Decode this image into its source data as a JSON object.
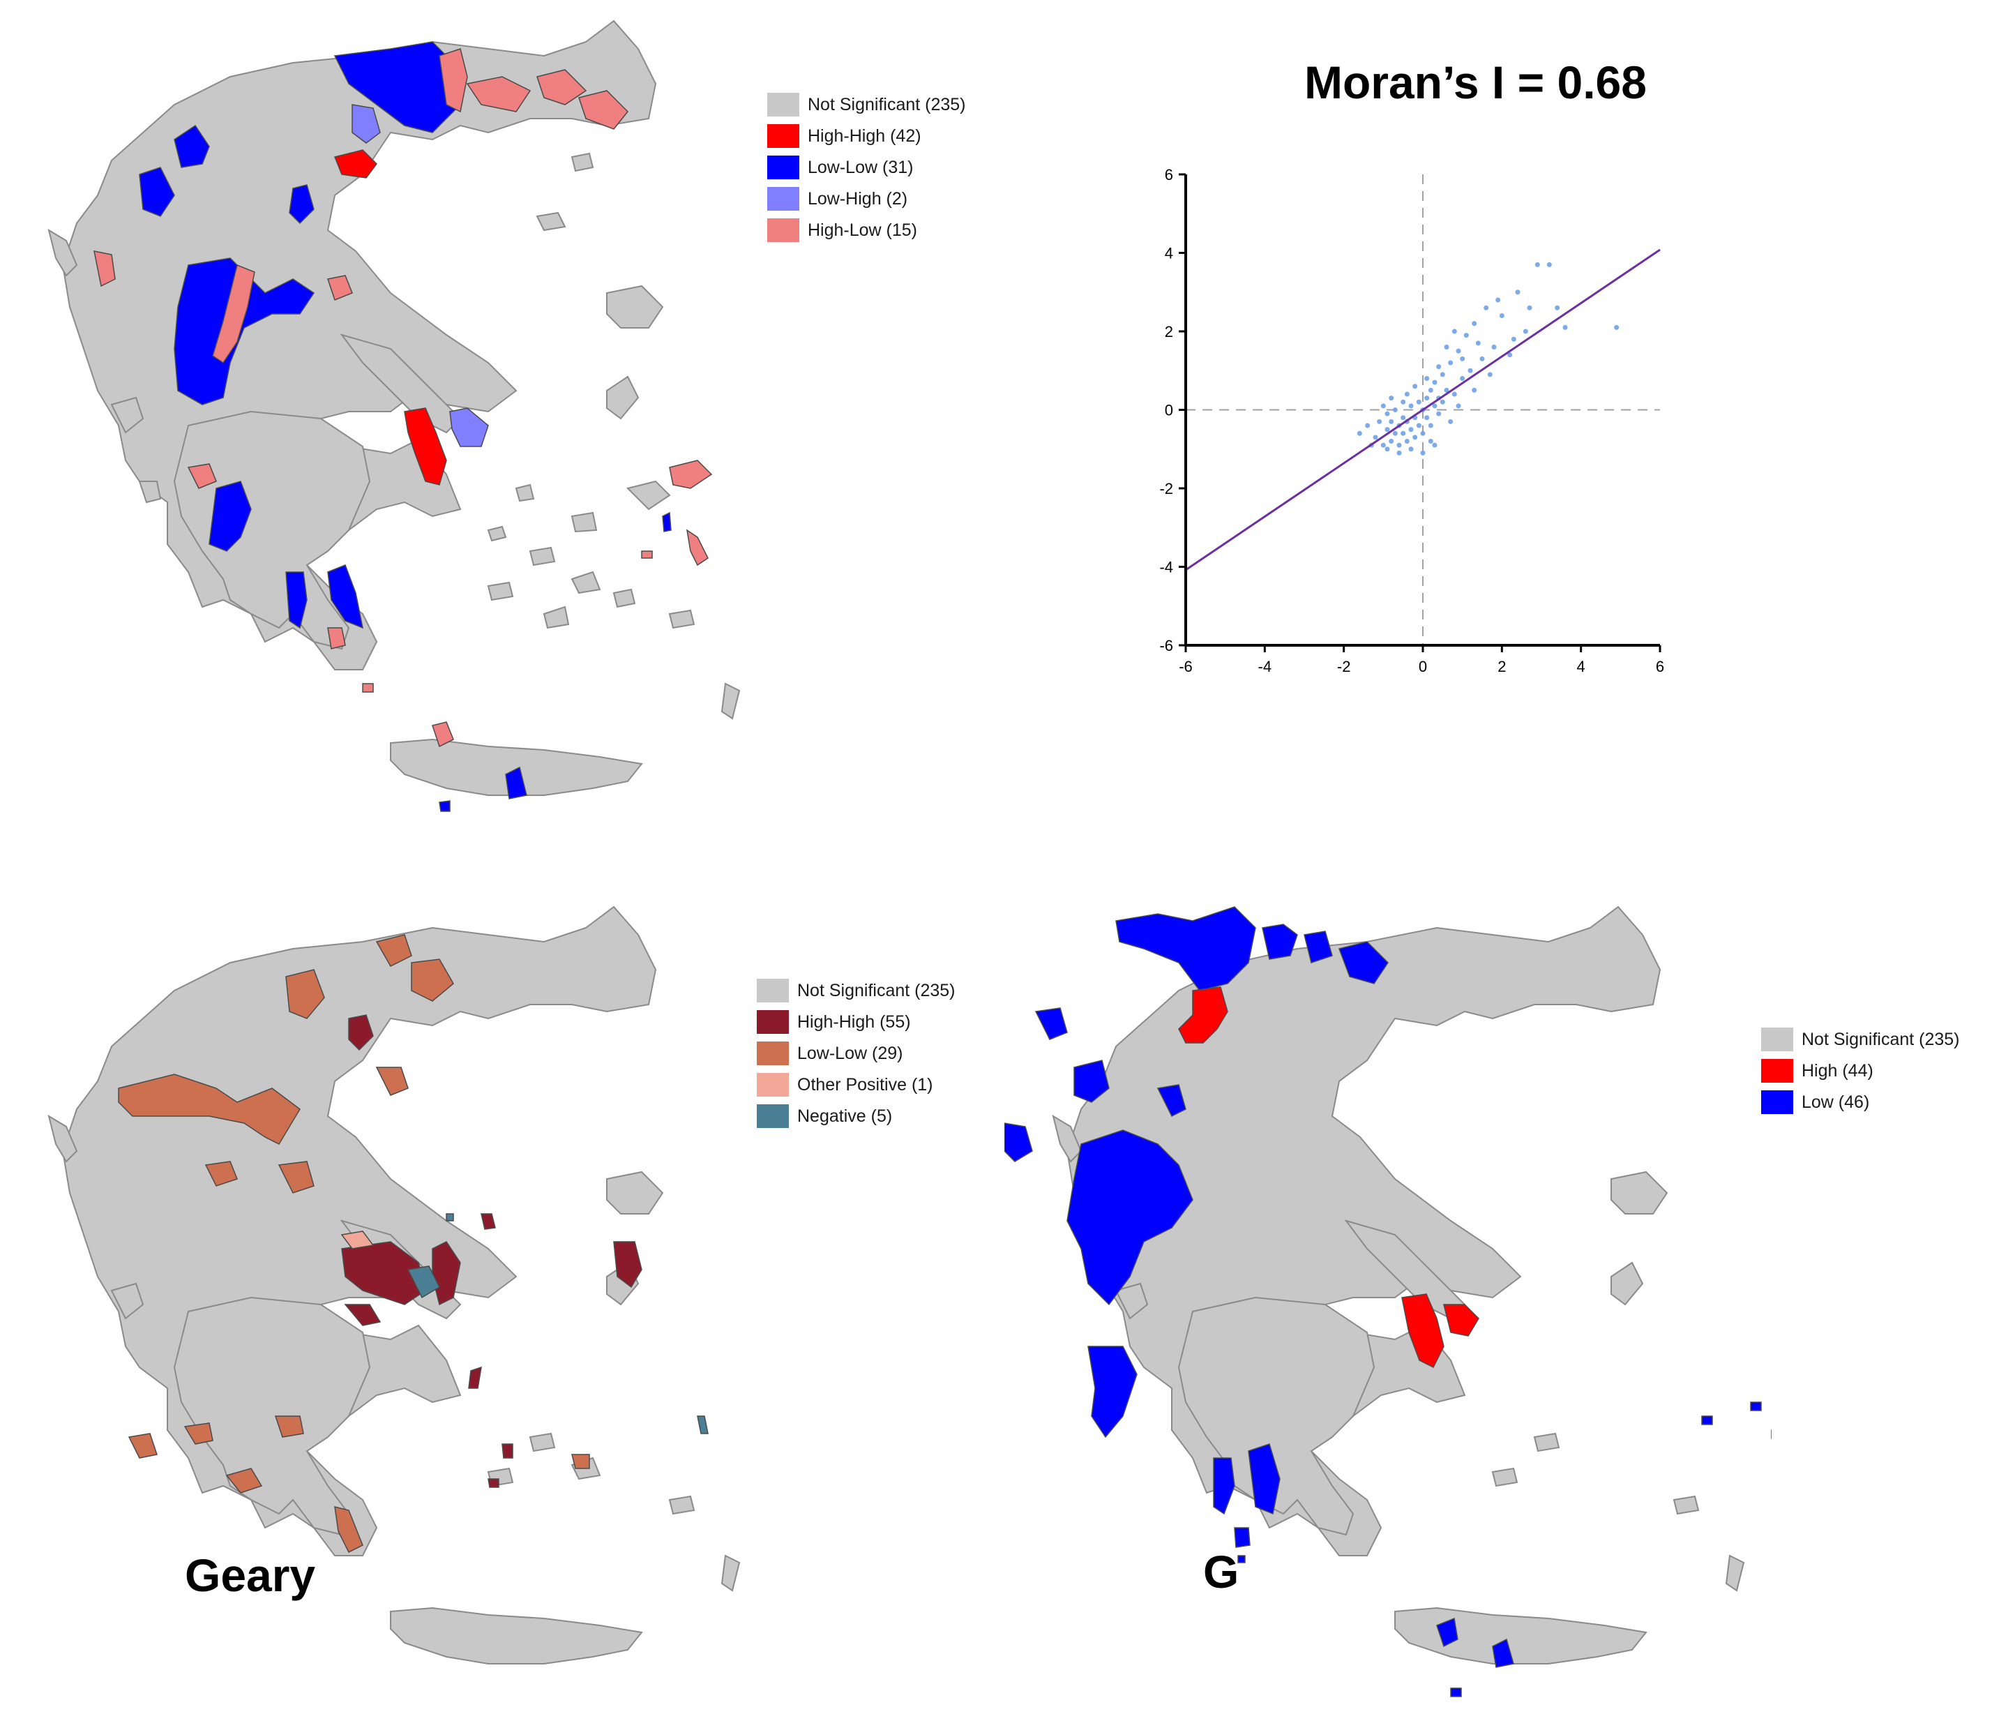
{
  "panels": {
    "lisa": {
      "title": "",
      "legend": [
        {
          "label": "Not Significant (235)",
          "color": "#c8c8c8"
        },
        {
          "label": "High-High (42)",
          "color": "#ff0000"
        },
        {
          "label": "Low-Low (31)",
          "color": "#0000ff"
        },
        {
          "label": "Low-High (2)",
          "color": "#8080ff"
        },
        {
          "label": "High-Low (15)",
          "color": "#f08080"
        }
      ]
    },
    "geary": {
      "title": "Geary",
      "legend": [
        {
          "label": "Not Significant (235)",
          "color": "#c8c8c8"
        },
        {
          "label": "High-High (55)",
          "color": "#8b1a2b"
        },
        {
          "label": "Low-Low (29)",
          "color": "#cc7050"
        },
        {
          "label": "Other Positive (1)",
          "color": "#f2a898"
        },
        {
          "label": "Negative (5)",
          "color": "#4a7f95"
        }
      ]
    },
    "g": {
      "title": "G",
      "legend": [
        {
          "label": "Not Significant (235)",
          "color": "#c8c8c8"
        },
        {
          "label": "High (44)",
          "color": "#ff0000"
        },
        {
          "label": "Low (46)",
          "color": "#0000ff"
        }
      ]
    }
  },
  "colors": {
    "map_base": "#c8c8c8",
    "map_border": "#8a8a8a",
    "scatter_points": "#6fa2e8",
    "fit_line": "#6a2fa0",
    "axis": "#000000",
    "reference_lines": "#a0a0a0"
  },
  "chart_data": {
    "type": "scatter",
    "title": "Moran’s I = 0.68",
    "xlabel": "",
    "ylabel": "",
    "xlim": [
      -6,
      6
    ],
    "ylim": [
      -6,
      6
    ],
    "x_ticks": [
      "-6",
      "-4",
      "-2",
      "0",
      "2",
      "4",
      "6"
    ],
    "y_ticks": [
      "-6",
      "-4",
      "-2",
      "0",
      "2",
      "4",
      "6"
    ],
    "fit_line": {
      "slope": 0.68,
      "intercept": 0.0
    },
    "reference_lines": {
      "x": 0,
      "y": 0
    },
    "grid": false,
    "points": [
      [
        -1.4,
        -0.4
      ],
      [
        -1.2,
        -0.7
      ],
      [
        -1.1,
        -0.3
      ],
      [
        -1.0,
        -0.9
      ],
      [
        -0.9,
        -0.5
      ],
      [
        -0.9,
        -0.1
      ],
      [
        -0.8,
        -0.8
      ],
      [
        -0.8,
        -0.3
      ],
      [
        -0.7,
        -0.6
      ],
      [
        -0.7,
        0.0
      ],
      [
        -0.6,
        -0.4
      ],
      [
        -0.6,
        -0.9
      ],
      [
        -0.5,
        -0.2
      ],
      [
        -0.5,
        -0.6
      ],
      [
        -0.4,
        -0.3
      ],
      [
        -0.4,
        -0.8
      ],
      [
        -0.3,
        0.1
      ],
      [
        -0.3,
        -0.5
      ],
      [
        -0.2,
        -0.2
      ],
      [
        -0.2,
        -0.7
      ],
      [
        -0.1,
        0.2
      ],
      [
        -0.1,
        -0.4
      ],
      [
        0.0,
        0.0
      ],
      [
        0.0,
        -0.6
      ],
      [
        0.1,
        0.3
      ],
      [
        0.1,
        -0.2
      ],
      [
        0.2,
        0.5
      ],
      [
        0.2,
        -0.4
      ],
      [
        0.3,
        0.1
      ],
      [
        0.3,
        0.7
      ],
      [
        0.4,
        0.3
      ],
      [
        0.4,
        -0.1
      ],
      [
        0.5,
        0.9
      ],
      [
        0.5,
        0.2
      ],
      [
        0.6,
        0.5
      ],
      [
        0.7,
        1.2
      ],
      [
        0.8,
        0.4
      ],
      [
        0.9,
        1.5
      ],
      [
        1.0,
        0.8
      ],
      [
        1.1,
        1.9
      ],
      [
        1.2,
        1.0
      ],
      [
        1.3,
        2.2
      ],
      [
        1.5,
        1.3
      ],
      [
        1.6,
        2.6
      ],
      [
        1.8,
        1.6
      ],
      [
        2.0,
        2.4
      ],
      [
        2.2,
        1.4
      ],
      [
        2.4,
        3.0
      ],
      [
        2.6,
        2.0
      ],
      [
        2.9,
        3.7
      ],
      [
        3.2,
        3.7
      ],
      [
        3.4,
        2.6
      ],
      [
        3.6,
        2.1
      ],
      [
        4.9,
        2.1
      ],
      [
        -0.9,
        -1.0
      ],
      [
        -0.6,
        -1.1
      ],
      [
        -0.3,
        -1.0
      ],
      [
        0.0,
        -1.1
      ],
      [
        -1.3,
        -0.9
      ],
      [
        -0.8,
        0.3
      ],
      [
        -0.4,
        0.4
      ],
      [
        0.1,
        0.8
      ],
      [
        0.6,
        1.6
      ],
      [
        0.9,
        0.1
      ],
      [
        1.3,
        0.5
      ],
      [
        -1.6,
        -0.6
      ],
      [
        -1.0,
        0.1
      ],
      [
        0.3,
        -0.9
      ],
      [
        0.7,
        -0.3
      ],
      [
        1.0,
        1.3
      ],
      [
        1.7,
        0.9
      ],
      [
        2.3,
        1.8
      ],
      [
        -0.2,
        0.6
      ],
      [
        0.4,
        1.1
      ],
      [
        0.8,
        2.0
      ],
      [
        1.4,
        1.7
      ],
      [
        1.9,
        2.8
      ],
      [
        2.7,
        2.6
      ],
      [
        -0.5,
        0.2
      ],
      [
        0.2,
        -0.8
      ]
    ]
  }
}
